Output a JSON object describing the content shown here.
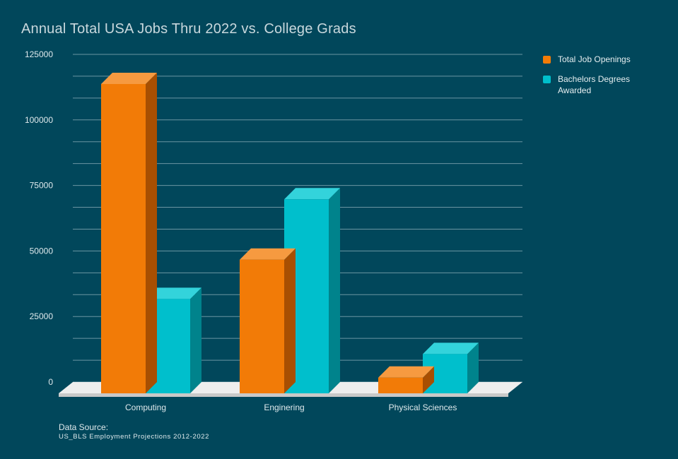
{
  "colors": {
    "background": "#01475b",
    "gridline": "#8fb0ba",
    "floor": "#eeeeee"
  },
  "chart_data": {
    "type": "bar",
    "title": "Annual Total USA Jobs Thru 2022 vs. College Grads",
    "xlabel": "",
    "ylabel": "",
    "categories": [
      "Computing",
      "Enginering",
      "Physical Sciences"
    ],
    "series": [
      {
        "name": "Total Job Openings",
        "values": [
          118000,
          51000,
          6000
        ],
        "color": "#f27b07",
        "top": "#f69a40",
        "side": "#a84f02"
      },
      {
        "name": "Bachelors Degrees Awarded",
        "values": [
          36000,
          74000,
          15000
        ],
        "color": "#00bfcc",
        "top": "#33d3db",
        "side": "#00838c"
      }
    ],
    "ylim": [
      0,
      125000
    ],
    "yticks": [
      0,
      25000,
      50000,
      75000,
      100000,
      125000
    ],
    "grid": true,
    "legend": "top-right"
  },
  "source": {
    "label": "Data Source:",
    "text": "US_BLS Employment Projections 2012-2022"
  }
}
